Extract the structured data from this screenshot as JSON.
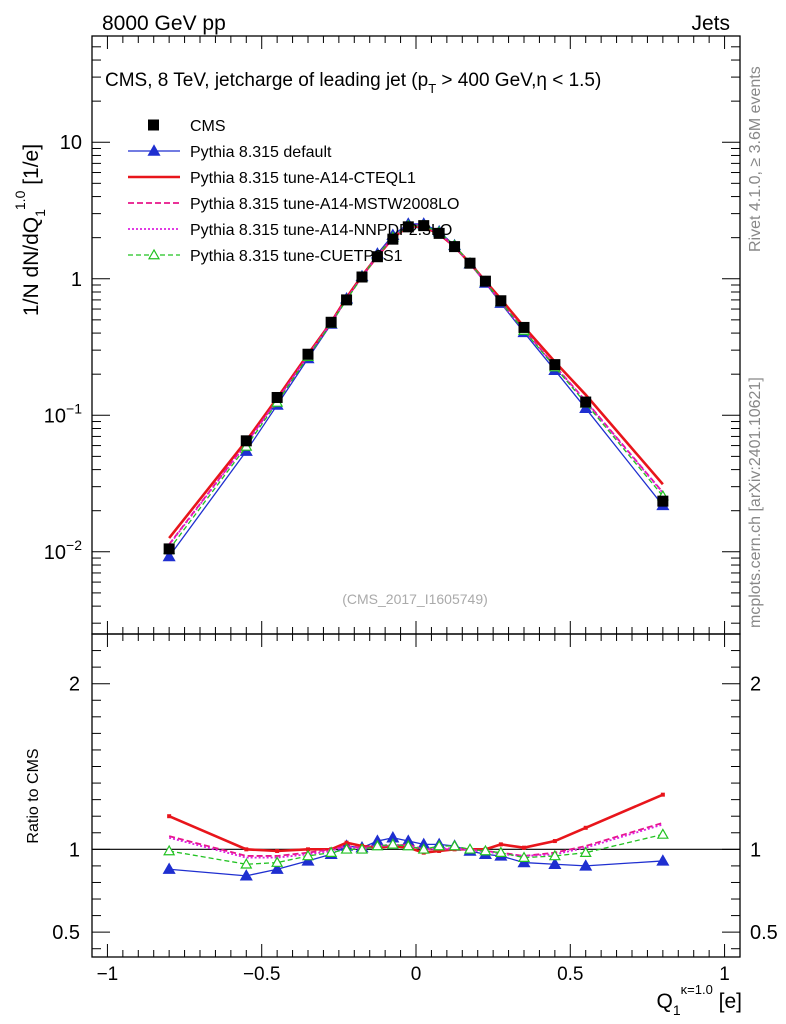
{
  "header": {
    "left": "8000 GeV pp",
    "right": "Jets"
  },
  "side_text": {
    "rivet": "Rivet 4.1.0, ≥ 3.6M events",
    "mcplots": "mcplots.cern.ch [arXiv:2401.10621]"
  },
  "analysis_id": "(CMS_2017_I1605749)",
  "chart_data": {
    "type": "line",
    "title": "CMS, 8 TeV, jetcharge of leading jet (p_T > 400 GeV,η < 1.5)",
    "title_parts": {
      "a": "CMS, 8 TeV, jetcharge of leading jet (p",
      "sub": "T",
      "b": " > 400 GeV,η < 1.5)"
    },
    "ylabel": {
      "main": "1/N dN/dQ",
      "sub": "1",
      "sup": "1.0",
      "unit": " [1/e]"
    },
    "xlabel": {
      "main": "Q",
      "sub": "1",
      "sup": "κ=1.0",
      "unit": " [e]"
    },
    "ratio_ylabel": "Ratio to CMS",
    "xlim": [
      -1.05,
      1.05
    ],
    "ylim": [
      0.0025,
      60
    ],
    "ratio_ylim": [
      0.35,
      2.3
    ],
    "x_ticks": [
      -1,
      -0.5,
      0,
      0.5,
      1
    ],
    "x_tick_labels": [
      "−1",
      "−0.5",
      "0",
      "0.5",
      "1"
    ],
    "y_ticks": [
      {
        "value": 0.01,
        "base": "10",
        "exp": "−2"
      },
      {
        "value": 0.1,
        "base": "10",
        "exp": "−1"
      },
      {
        "value": 1,
        "base": "1",
        "exp": ""
      },
      {
        "value": 10,
        "base": "10",
        "exp": ""
      }
    ],
    "ratio_ticks": [
      {
        "value": 0.5,
        "label": "0.5"
      },
      {
        "value": 1,
        "label": "1"
      },
      {
        "value": 2,
        "label": "2"
      }
    ],
    "x": [
      -0.8,
      -0.55,
      -0.45,
      -0.35,
      -0.275,
      -0.225,
      -0.175,
      -0.125,
      -0.075,
      -0.025,
      0.025,
      0.075,
      0.125,
      0.175,
      0.225,
      0.275,
      0.35,
      0.45,
      0.55,
      0.8
    ],
    "data": {
      "name": "CMS",
      "values": [
        0.0105,
        0.065,
        0.135,
        0.28,
        0.48,
        0.7,
        1.03,
        1.45,
        1.95,
        2.4,
        2.45,
        2.15,
        1.72,
        1.3,
        0.96,
        0.69,
        0.44,
        0.235,
        0.125,
        0.0235
      ]
    },
    "series": [
      {
        "name": "Pythia 8.315 default",
        "color": "#1f2fd0",
        "dash": "",
        "marker": "triangle-filled",
        "width": 1.3,
        "ratio": [
          0.88,
          0.84,
          0.88,
          0.93,
          0.97,
          1.02,
          1.01,
          1.05,
          1.07,
          1.05,
          1.03,
          1.03,
          1.02,
          0.99,
          0.97,
          0.96,
          0.92,
          0.91,
          0.9,
          0.93
        ]
      },
      {
        "name": "Pythia 8.315 tune-A14-CTEQL1",
        "color": "#e8151b",
        "dash": "",
        "marker": "none",
        "width": 2.6,
        "ratio": [
          1.2,
          1.0,
          0.99,
          1.0,
          1.0,
          1.04,
          1.02,
          1.01,
          1.02,
          1.01,
          0.98,
          0.99,
          1.0,
          1.0,
          1.0,
          1.03,
          1.01,
          1.05,
          1.13,
          1.33
        ]
      },
      {
        "name": "Pythia 8.315 tune-A14-MSTW2008LO",
        "color": "#e8158a",
        "dash": "6,3",
        "marker": "none",
        "width": 1.8,
        "ratio": [
          1.08,
          0.96,
          0.96,
          0.98,
          1.0,
          1.02,
          1.01,
          1.02,
          1.02,
          1.03,
          1.0,
          1.0,
          1.0,
          1.0,
          0.99,
          0.98,
          0.96,
          0.98,
          1.02,
          1.16
        ]
      },
      {
        "name": "Pythia 8.315 tune-A14-NNPDF2.3LO",
        "color": "#dd1fe0",
        "dash": "2,2",
        "marker": "none",
        "width": 1.8,
        "ratio": [
          1.07,
          0.95,
          0.95,
          0.97,
          0.99,
          1.02,
          1.0,
          1.02,
          1.03,
          1.02,
          1.0,
          1.0,
          1.01,
          0.99,
          0.99,
          0.97,
          0.96,
          0.97,
          1.01,
          1.15
        ]
      },
      {
        "name": "Pythia 8.315 tune-CUETP8S1",
        "color": "#22c222",
        "dash": "5,3",
        "marker": "triangle-open",
        "width": 1.3,
        "ratio": [
          0.99,
          0.91,
          0.92,
          0.96,
          0.98,
          1.0,
          1.0,
          1.02,
          1.03,
          1.02,
          1.0,
          1.02,
          1.02,
          1.0,
          0.99,
          0.98,
          0.95,
          0.96,
          0.98,
          1.09
        ]
      }
    ],
    "legend_position": "top-left"
  }
}
